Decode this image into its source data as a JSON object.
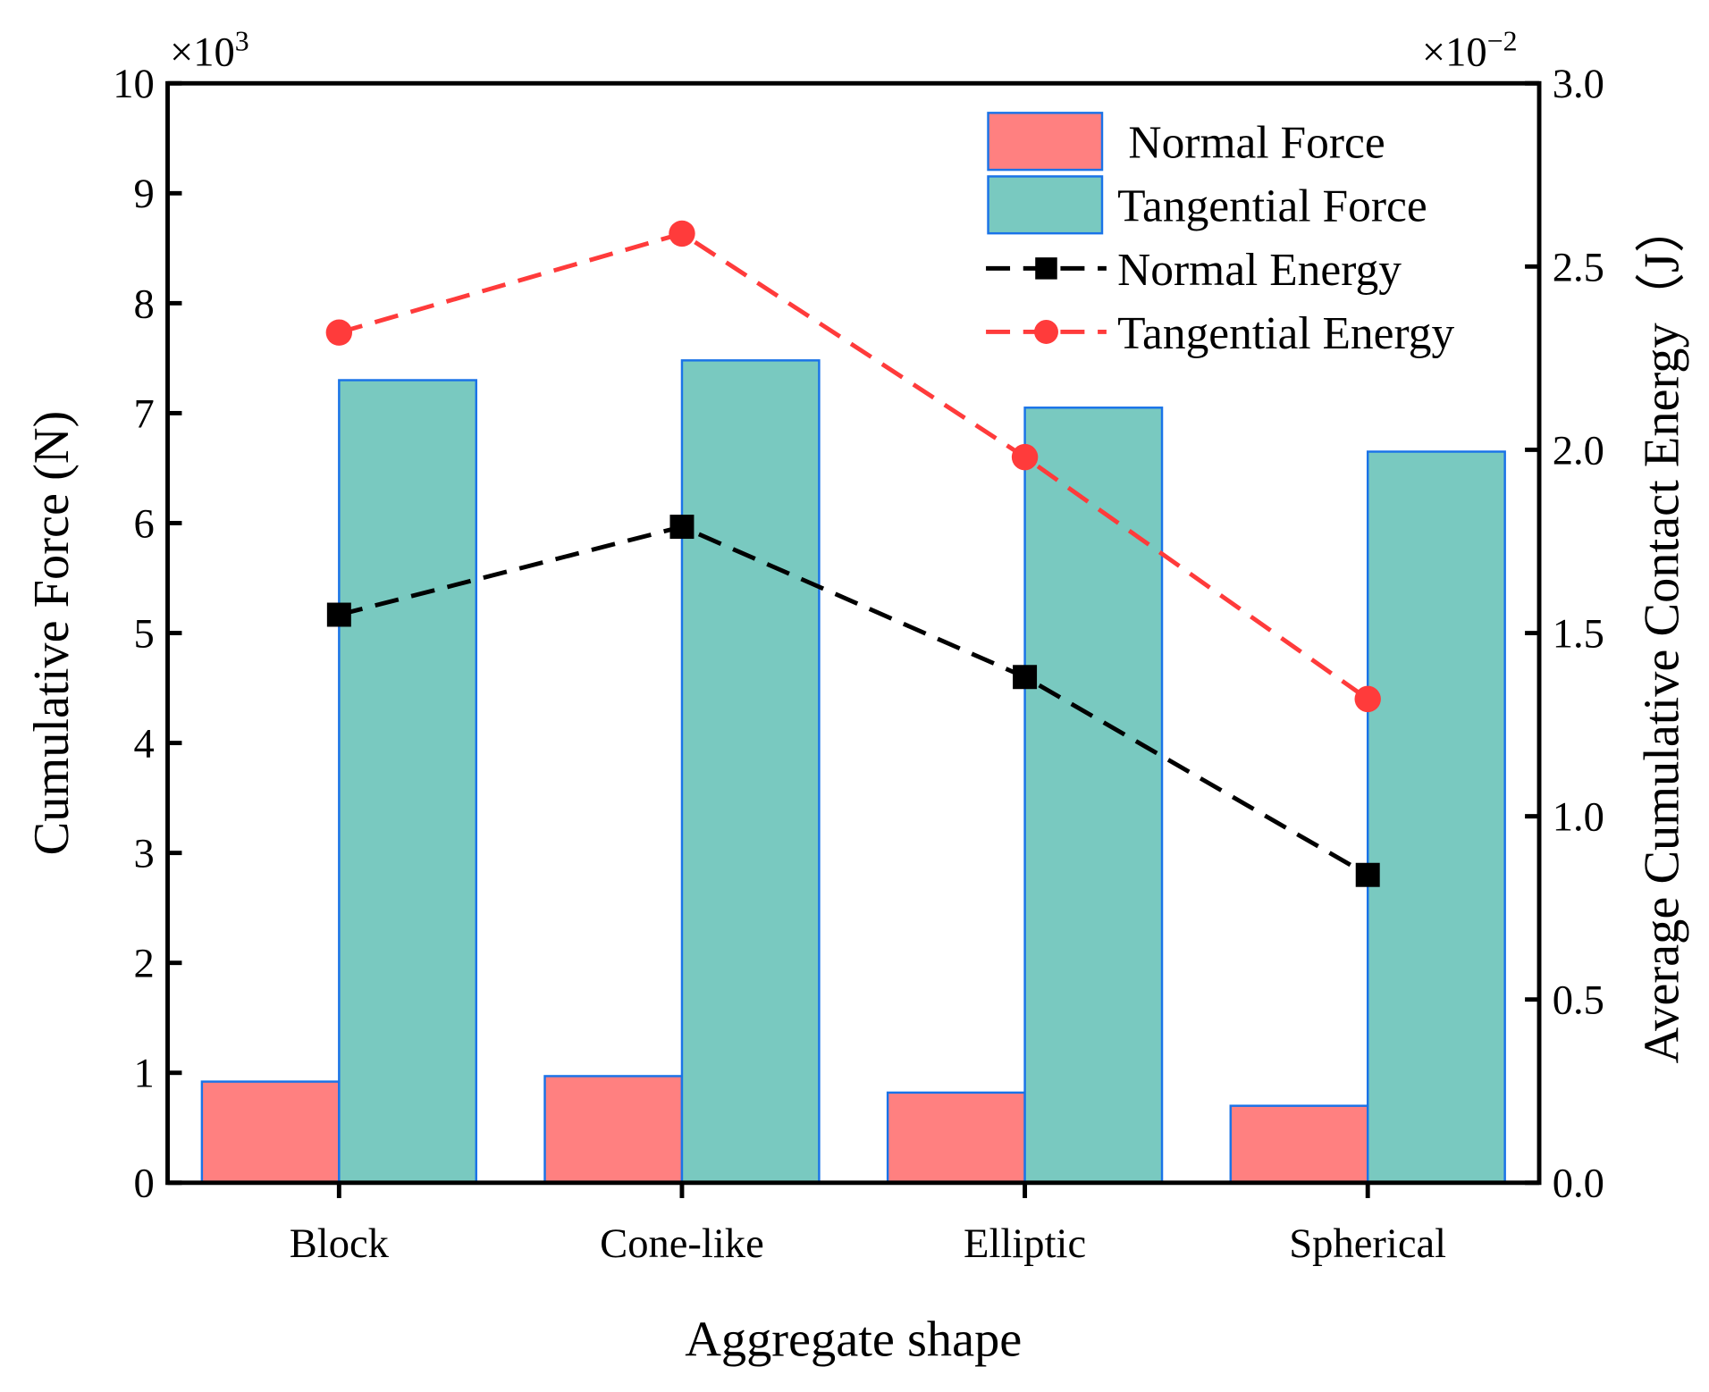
{
  "chart_data": {
    "type": "bar+line",
    "categories": [
      "Block",
      "Cone-like",
      "Elliptic",
      "Spherical"
    ],
    "xlabel": "Aggregate shape",
    "ylabel": "Cumulative Force (N)",
    "y2label": "Average Cumulative Contact Energy（J）",
    "ylim": [
      0,
      10
    ],
    "y2lim": [
      0,
      3.0
    ],
    "y_multiplier": "×10",
    "y_multiplier_exp": "3",
    "y2_multiplier": "×10",
    "y2_multiplier_exp": "−2",
    "yticks": [
      "0",
      "1",
      "2",
      "3",
      "4",
      "5",
      "6",
      "7",
      "8",
      "9",
      "10"
    ],
    "y2ticks": [
      "0.0",
      "0.5",
      "1.0",
      "1.5",
      "2.0",
      "2.5",
      "3.0"
    ],
    "bar_series": [
      {
        "name": "Normal Force",
        "color": "#ff8080",
        "edge": "#1a73e8",
        "values": [
          0.92,
          0.97,
          0.82,
          0.7
        ]
      },
      {
        "name": "Tangential Force",
        "color": "#79c9c0",
        "edge": "#1a73e8",
        "values": [
          7.3,
          7.48,
          7.05,
          6.65
        ]
      }
    ],
    "line_series": [
      {
        "name": "Normal Energy",
        "color": "#000000",
        "marker": "square",
        "axis": "right",
        "values": [
          1.55,
          1.79,
          1.38,
          0.84
        ]
      },
      {
        "name": "Tangential Energy",
        "color": "#ff3b3b",
        "marker": "circle",
        "axis": "right",
        "values": [
          2.32,
          2.59,
          1.98,
          1.32
        ]
      }
    ],
    "legend_position": "top-right",
    "grid": false
  }
}
